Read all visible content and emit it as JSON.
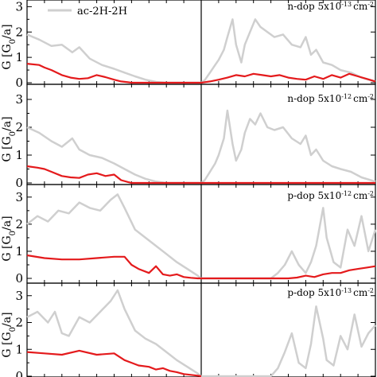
{
  "colors": {
    "gray": "#cfcfcf",
    "red": "#e41a1c",
    "frame": "#000000"
  },
  "legend": {
    "label": "ac-2H-2H",
    "position": "top-left"
  },
  "chart_data": [
    {
      "type": "line",
      "panel": 1,
      "annotation": "n-dop 5x10",
      "annotation_exp": "-13",
      "annotation_unit": "cm",
      "annotation_unit_exp": "-2",
      "ylabel": "G [G",
      "ylabel_sub": "0",
      "ylabel_end": "/a]",
      "ylim": [
        0,
        3.2
      ],
      "yticks": [
        "0",
        "1",
        "2",
        "3"
      ],
      "xlim": [
        -1,
        1
      ],
      "vline": 0,
      "series": [
        {
          "name": "ac-2H-2H",
          "color": "#cfcfcf",
          "x": [
            -1.0,
            -0.93,
            -0.86,
            -0.8,
            -0.74,
            -0.7,
            -0.64,
            -0.57,
            -0.5,
            -0.44,
            -0.38,
            -0.32,
            -0.26,
            -0.2,
            -0.16,
            -0.12,
            -0.1,
            0.0,
            0.02,
            0.05,
            0.08,
            0.1,
            0.13,
            0.15,
            0.18,
            0.2,
            0.23,
            0.25,
            0.28,
            0.31,
            0.34,
            0.38,
            0.42,
            0.47,
            0.52,
            0.57,
            0.6,
            0.63,
            0.66,
            0.7,
            0.75,
            0.8,
            0.86,
            0.92,
            1.0
          ],
          "y": [
            1.9,
            1.7,
            1.45,
            1.5,
            1.2,
            1.4,
            0.95,
            0.7,
            0.55,
            0.4,
            0.25,
            0.12,
            0.03,
            0.0,
            0.0,
            0.0,
            0.0,
            0.0,
            0.1,
            0.4,
            0.7,
            0.9,
            1.3,
            1.8,
            2.5,
            1.5,
            0.8,
            1.5,
            2.0,
            2.5,
            2.2,
            2.0,
            1.8,
            1.9,
            1.5,
            1.4,
            1.8,
            1.1,
            1.3,
            0.8,
            0.7,
            0.5,
            0.4,
            0.2,
            0.05
          ]
        },
        {
          "name": "",
          "color": "#e41a1c",
          "x": [
            -1.0,
            -0.93,
            -0.9,
            -0.86,
            -0.8,
            -0.75,
            -0.7,
            -0.65,
            -0.6,
            -0.55,
            -0.5,
            -0.46,
            -0.42,
            -0.4,
            0.0,
            0.05,
            0.1,
            0.15,
            0.2,
            0.25,
            0.3,
            0.35,
            0.4,
            0.45,
            0.5,
            0.55,
            0.6,
            0.65,
            0.7,
            0.75,
            0.8,
            0.85,
            0.9,
            0.95,
            1.0
          ],
          "y": [
            0.75,
            0.7,
            0.6,
            0.5,
            0.3,
            0.2,
            0.15,
            0.18,
            0.3,
            0.22,
            0.12,
            0.05,
            0.02,
            0.0,
            0.0,
            0.05,
            0.12,
            0.2,
            0.3,
            0.25,
            0.35,
            0.3,
            0.25,
            0.3,
            0.2,
            0.15,
            0.12,
            0.25,
            0.15,
            0.3,
            0.2,
            0.35,
            0.25,
            0.15,
            0.05
          ]
        }
      ]
    },
    {
      "type": "line",
      "panel": 2,
      "annotation": "n-dop 5x10",
      "annotation_exp": "-12",
      "annotation_unit": "cm",
      "annotation_unit_exp": "-2",
      "ylabel": "G [G",
      "ylabel_sub": "0",
      "ylabel_end": "/a]",
      "ylim": [
        0,
        3.2
      ],
      "yticks": [
        "0",
        "1",
        "2",
        "3"
      ],
      "xlim": [
        -1,
        1
      ],
      "vline": 0,
      "series": [
        {
          "name": "",
          "color": "#cfcfcf",
          "x": [
            -1.0,
            -0.93,
            -0.86,
            -0.8,
            -0.74,
            -0.7,
            -0.64,
            -0.57,
            -0.5,
            -0.44,
            -0.38,
            -0.32,
            -0.26,
            -0.2,
            -0.16,
            0.0,
            0.02,
            0.05,
            0.08,
            0.1,
            0.13,
            0.15,
            0.18,
            0.2,
            0.23,
            0.25,
            0.28,
            0.31,
            0.34,
            0.38,
            0.42,
            0.47,
            0.52,
            0.57,
            0.6,
            0.63,
            0.66,
            0.7,
            0.75,
            0.8,
            0.86,
            0.92,
            1.0
          ],
          "y": [
            2.0,
            1.8,
            1.5,
            1.3,
            1.6,
            1.2,
            1.0,
            0.9,
            0.7,
            0.5,
            0.3,
            0.15,
            0.05,
            0.0,
            0.0,
            0.0,
            0.1,
            0.4,
            0.7,
            1.0,
            1.6,
            2.6,
            1.4,
            0.8,
            1.2,
            1.8,
            2.3,
            2.1,
            2.5,
            2.0,
            1.9,
            2.0,
            1.6,
            1.4,
            1.7,
            1.0,
            1.2,
            0.8,
            0.6,
            0.5,
            0.4,
            0.2,
            0.05
          ]
        },
        {
          "name": "",
          "color": "#e41a1c",
          "x": [
            -1.0,
            -0.94,
            -0.9,
            -0.86,
            -0.8,
            -0.75,
            -0.7,
            -0.65,
            -0.6,
            -0.55,
            -0.5,
            -0.46,
            -0.42,
            -0.4,
            0.0,
            0.05,
            0.1,
            0.15,
            0.2,
            0.25,
            0.3,
            0.35,
            0.4,
            0.45,
            0.5,
            0.55,
            0.6,
            0.65,
            0.7,
            0.75,
            0.8,
            0.85,
            0.9,
            0.95,
            1.0
          ],
          "y": [
            0.6,
            0.55,
            0.5,
            0.4,
            0.25,
            0.2,
            0.18,
            0.3,
            0.35,
            0.25,
            0.3,
            0.1,
            0.03,
            0.0,
            0.0,
            0.0,
            0.0,
            0.0,
            0.0,
            0.0,
            0.0,
            0.0,
            0.0,
            0.0,
            0.0,
            0.0,
            0.0,
            0.0,
            0.0,
            0.0,
            0.0,
            0.0,
            0.0,
            0.0,
            0.0
          ]
        }
      ]
    },
    {
      "type": "line",
      "panel": 3,
      "annotation": "p-dop 5x10",
      "annotation_exp": "-12",
      "annotation_unit": "cm",
      "annotation_unit_exp": "-2",
      "ylabel": "G [G",
      "ylabel_sub": "0",
      "ylabel_end": "/a]",
      "ylim": [
        0,
        3.2
      ],
      "yticks": [
        "0",
        "1",
        "2",
        "3"
      ],
      "xlim": [
        -1,
        1
      ],
      "vline": 0,
      "series": [
        {
          "name": "",
          "color": "#cfcfcf",
          "x": [
            -1.0,
            -0.94,
            -0.88,
            -0.82,
            -0.76,
            -0.7,
            -0.64,
            -0.58,
            -0.52,
            -0.48,
            -0.44,
            -0.38,
            -0.32,
            -0.26,
            -0.2,
            -0.14,
            -0.08,
            -0.02,
            0.0,
            0.4,
            0.44,
            0.48,
            0.52,
            0.56,
            0.6,
            0.63,
            0.66,
            0.7,
            0.72,
            0.76,
            0.8,
            0.84,
            0.88,
            0.92,
            0.96,
            1.0
          ],
          "y": [
            2.0,
            2.3,
            2.1,
            2.5,
            2.4,
            2.8,
            2.6,
            2.5,
            2.9,
            3.1,
            2.6,
            1.8,
            1.5,
            1.2,
            0.9,
            0.6,
            0.35,
            0.1,
            0.0,
            0.0,
            0.2,
            0.5,
            1.0,
            0.5,
            0.2,
            0.6,
            1.2,
            2.6,
            1.5,
            0.6,
            0.4,
            1.8,
            1.2,
            2.3,
            1.0,
            1.8
          ]
        },
        {
          "name": "",
          "color": "#e41a1c",
          "x": [
            -1.0,
            -0.9,
            -0.8,
            -0.7,
            -0.6,
            -0.5,
            -0.44,
            -0.4,
            -0.36,
            -0.3,
            -0.26,
            -0.22,
            -0.18,
            -0.14,
            -0.1,
            -0.06,
            -0.02,
            0.0,
            0.5,
            0.55,
            0.6,
            0.65,
            0.7,
            0.75,
            0.8,
            0.85,
            0.9,
            0.95,
            1.0
          ],
          "y": [
            0.85,
            0.75,
            0.7,
            0.7,
            0.75,
            0.8,
            0.8,
            0.5,
            0.35,
            0.2,
            0.45,
            0.15,
            0.1,
            0.15,
            0.05,
            0.02,
            0.0,
            0.0,
            0.0,
            0.03,
            0.1,
            0.05,
            0.15,
            0.2,
            0.2,
            0.3,
            0.35,
            0.4,
            0.45
          ]
        }
      ]
    },
    {
      "type": "line",
      "panel": 4,
      "annotation": "p-dop 5x10",
      "annotation_exp": "-13",
      "annotation_unit": "cm",
      "annotation_unit_exp": "-2",
      "ylabel": "G [G",
      "ylabel_sub": "0",
      "ylabel_end": "/a]",
      "ylim": [
        0,
        3.2
      ],
      "yticks": [
        "0",
        "1",
        "2",
        "3"
      ],
      "xlim": [
        -1,
        1
      ],
      "vline": 0,
      "series": [
        {
          "name": "",
          "color": "#cfcfcf",
          "x": [
            -1.0,
            -0.94,
            -0.88,
            -0.84,
            -0.8,
            -0.76,
            -0.7,
            -0.64,
            -0.58,
            -0.52,
            -0.48,
            -0.44,
            -0.38,
            -0.32,
            -0.26,
            -0.2,
            -0.14,
            -0.08,
            -0.02,
            0.0,
            0.4,
            0.44,
            0.48,
            0.52,
            0.56,
            0.6,
            0.63,
            0.66,
            0.7,
            0.72,
            0.76,
            0.8,
            0.84,
            0.88,
            0.92,
            0.96,
            1.0
          ],
          "y": [
            2.2,
            2.4,
            2.0,
            2.4,
            1.6,
            1.5,
            2.2,
            2.0,
            2.4,
            2.8,
            3.2,
            2.5,
            1.7,
            1.4,
            1.2,
            0.9,
            0.6,
            0.35,
            0.1,
            0.0,
            0.0,
            0.3,
            0.9,
            1.6,
            0.5,
            0.3,
            1.2,
            2.6,
            1.4,
            0.6,
            0.4,
            1.5,
            1.0,
            2.3,
            1.1,
            1.6,
            1.9
          ]
        },
        {
          "name": "",
          "color": "#e41a1c",
          "x": [
            -1.0,
            -0.9,
            -0.8,
            -0.7,
            -0.6,
            -0.5,
            -0.44,
            -0.4,
            -0.36,
            -0.3,
            -0.26,
            -0.22,
            -0.18,
            -0.14,
            -0.1,
            -0.06,
            -0.02,
            0.0
          ],
          "y": [
            0.9,
            0.85,
            0.8,
            0.95,
            0.8,
            0.85,
            0.6,
            0.5,
            0.4,
            0.35,
            0.25,
            0.3,
            0.2,
            0.15,
            0.08,
            0.05,
            0.02,
            0.0
          ]
        }
      ]
    }
  ]
}
